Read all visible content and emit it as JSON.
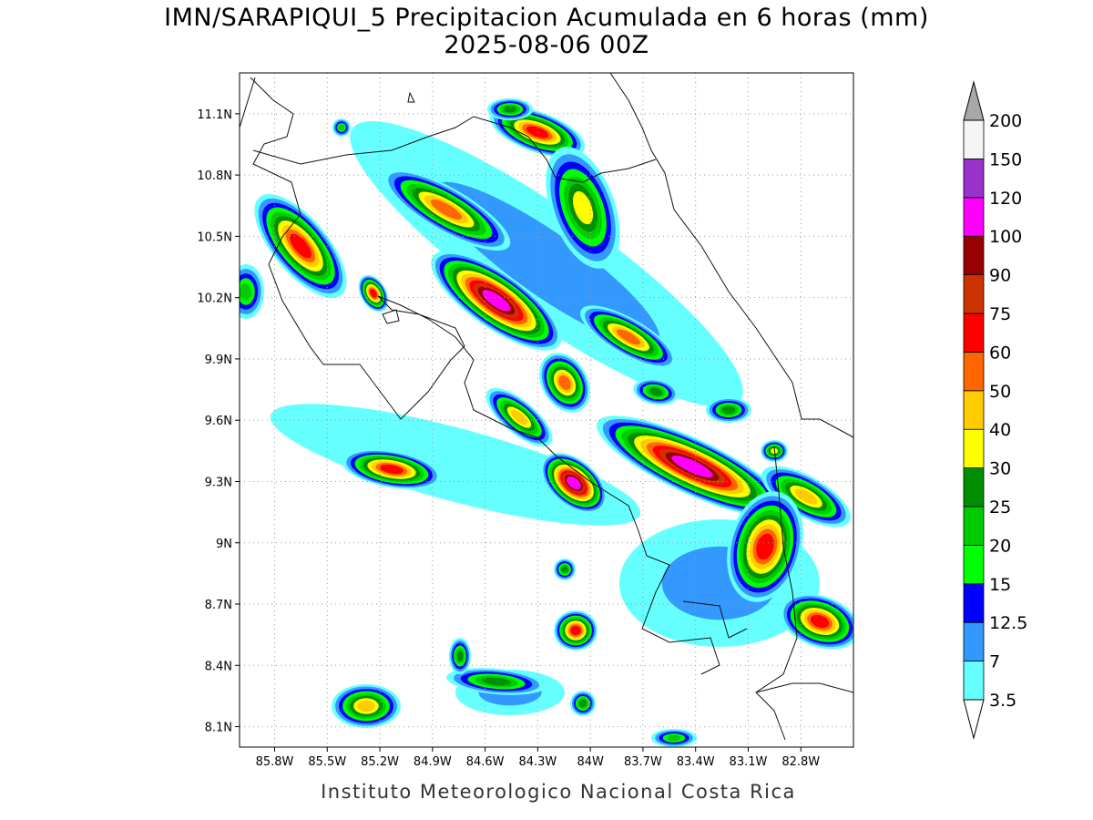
{
  "map": {
    "title": "IMN/SARAPIQUI_5 Precipitacion Acumulada en 6 horas (mm)",
    "subtitle": "2025-08-06 00Z",
    "footer": "Instituto Meteorologico Nacional Costa Rica",
    "lonlim": [
      -86.0,
      -82.5
    ],
    "latlim": [
      8.0,
      11.3
    ],
    "lon_ticks": [
      {
        "value": -85.8,
        "label": "85.8W"
      },
      {
        "value": -85.5,
        "label": "85.5W"
      },
      {
        "value": -85.2,
        "label": "85.2W"
      },
      {
        "value": -84.9,
        "label": "84.9W"
      },
      {
        "value": -84.6,
        "label": "84.6W"
      },
      {
        "value": -84.3,
        "label": "84.3W"
      },
      {
        "value": -84.0,
        "label": "84W"
      },
      {
        "value": -83.7,
        "label": "83.7W"
      },
      {
        "value": -83.4,
        "label": "83.4W"
      },
      {
        "value": -83.1,
        "label": "83.1W"
      },
      {
        "value": -82.8,
        "label": "82.8W"
      }
    ],
    "lat_ticks": [
      {
        "value": 11.1,
        "label": "11.1N"
      },
      {
        "value": 10.8,
        "label": "10.8N"
      },
      {
        "value": 10.5,
        "label": "10.5N"
      },
      {
        "value": 10.2,
        "label": "10.2N"
      },
      {
        "value": 9.9,
        "label": "9.9N"
      },
      {
        "value": 9.6,
        "label": "9.6N"
      },
      {
        "value": 9.3,
        "label": "9.3N"
      },
      {
        "value": 9.0,
        "label": "9N"
      },
      {
        "value": 8.7,
        "label": "8.7N"
      },
      {
        "value": 8.4,
        "label": "8.4N"
      },
      {
        "value": 8.1,
        "label": "8.1N"
      }
    ],
    "grid": true,
    "colorbar": {
      "levels": [
        3.5,
        7,
        12.5,
        15,
        20,
        25,
        30,
        40,
        50,
        60,
        75,
        90,
        100,
        120,
        150,
        200
      ],
      "colors": [
        "#66ffff",
        "#3399ff",
        "#0000ff",
        "#00ff00",
        "#00cc00",
        "#008f00",
        "#ffff00",
        "#ffcc00",
        "#ff6600",
        "#ff0000",
        "#cc3300",
        "#990000",
        "#ff00ff",
        "#9933cc",
        "#f5f5f5"
      ],
      "under_color": "#ffffff",
      "over_color": "#a8a8a8"
    }
  }
}
